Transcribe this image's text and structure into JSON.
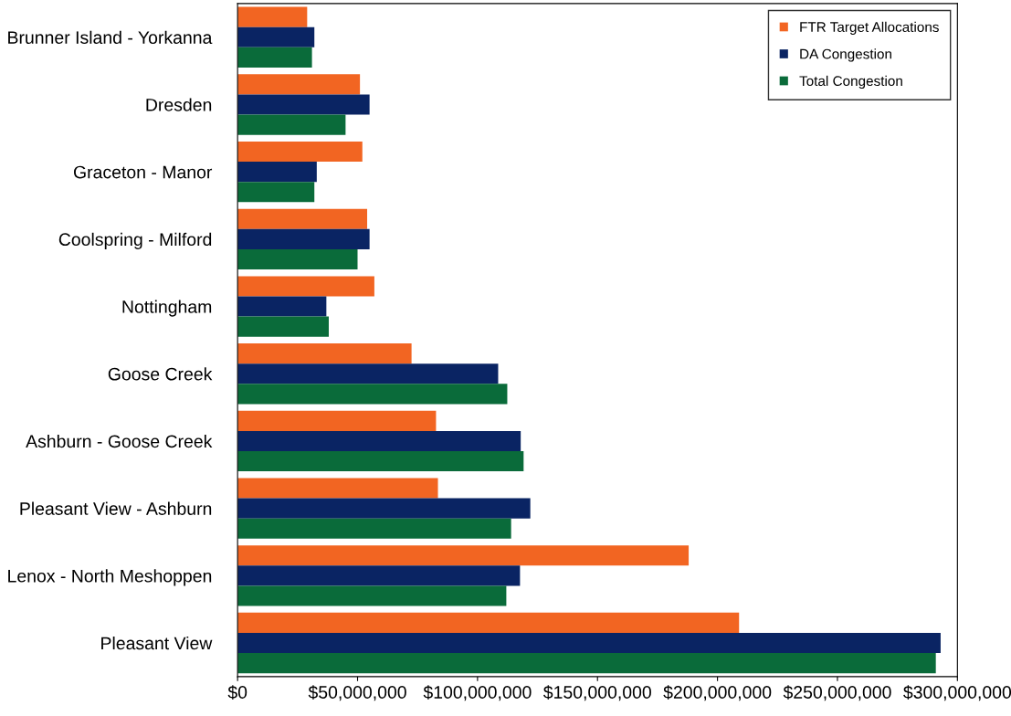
{
  "chart_data": {
    "type": "bar",
    "orientation": "horizontal",
    "categories": [
      "Brunner Island - Yorkanna",
      "Dresden",
      "Graceton - Manor",
      "Coolspring - Milford",
      "Nottingham",
      "Goose Creek",
      "Ashburn - Goose Creek",
      "Pleasant View - Ashburn",
      "Lenox - North Meshoppen",
      "Pleasant View"
    ],
    "series": [
      {
        "name": "FTR Target Allocations",
        "color": "#f26522",
        "values": [
          29000000,
          51000000,
          52000000,
          54000000,
          57000000,
          72500000,
          82700000,
          83500000,
          188000000,
          209000000
        ]
      },
      {
        "name": "DA Congestion",
        "color": "#0a2463",
        "values": [
          32000000,
          55000000,
          33000000,
          55000000,
          37000000,
          108600000,
          118000000,
          122000000,
          117700000,
          293000000
        ]
      },
      {
        "name": "Total Congestion",
        "color": "#0a6b3a",
        "values": [
          31000000,
          45000000,
          32000000,
          50000000,
          38000000,
          112400000,
          119200000,
          114000000,
          112000000,
          291000000
        ]
      }
    ],
    "xlim": [
      0,
      300000000
    ],
    "xticks": [
      {
        "value": 0,
        "label": "$0"
      },
      {
        "value": 50000000,
        "label": "$50,000,000"
      },
      {
        "value": 100000000,
        "label": "$100,000,000"
      },
      {
        "value": 150000000,
        "label": "$150,000,000"
      },
      {
        "value": 200000000,
        "label": "$200,000,000"
      },
      {
        "value": 250000000,
        "label": "$250,000,000"
      },
      {
        "value": 300000000,
        "label": "$300,000,000"
      }
    ],
    "legend": "top right",
    "grid": false
  }
}
